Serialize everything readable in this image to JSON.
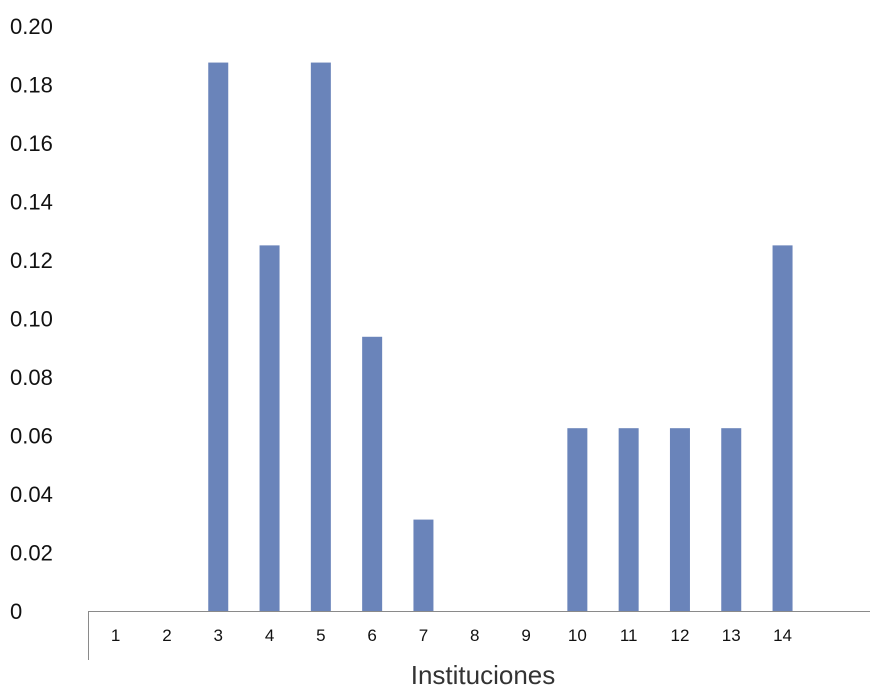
{
  "chart_data": {
    "type": "bar",
    "title": "",
    "xlabel": "Instituciones",
    "ylabel": "",
    "categories": [
      "1",
      "2",
      "3",
      "4",
      "5",
      "6",
      "7",
      "8",
      "9",
      "10",
      "11",
      "12",
      "13",
      "14"
    ],
    "values": [
      0,
      0,
      0.1875,
      0.125,
      0.1875,
      0.09375,
      0.03125,
      0,
      0,
      0.0625,
      0.0625,
      0.0625,
      0.0625,
      0.125
    ],
    "ylim": [
      0,
      0.2
    ],
    "yticks": [
      "0",
      "0.02",
      "0.04",
      "0.06",
      "0.08",
      "0.10",
      "0.12",
      "0.14",
      "0.16",
      "0.18",
      "0.20"
    ],
    "bar_color": "#6a84ba",
    "grid": false,
    "legend": "none"
  }
}
